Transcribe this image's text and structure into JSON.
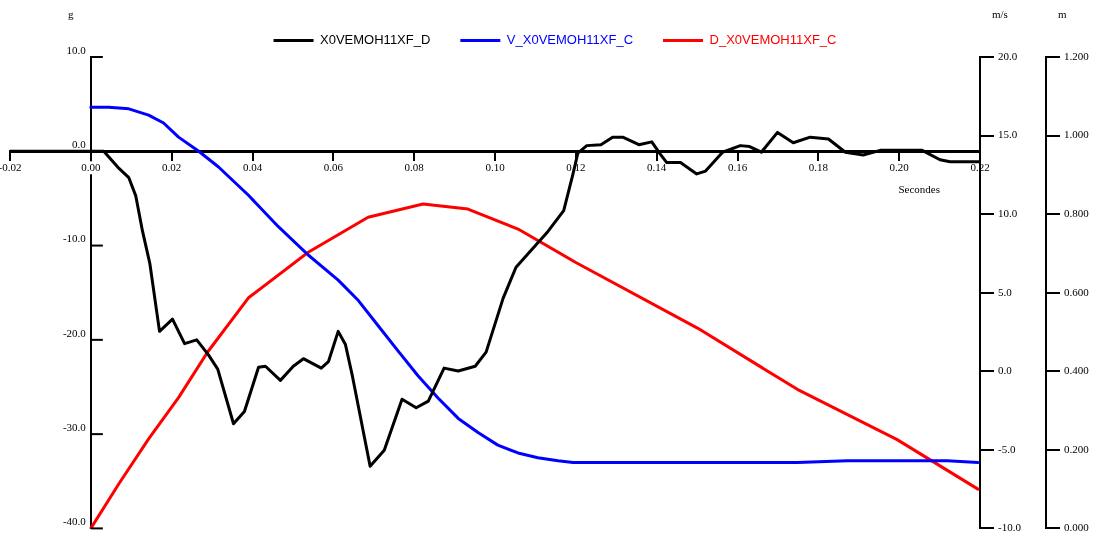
{
  "chart_data": {
    "type": "line",
    "xlabel": "Secondes",
    "ylabel": "g",
    "y2label": "m/s",
    "y3label": "m",
    "legend": "top",
    "grid": false,
    "marker": "none",
    "line_style": "solid",
    "xlim": [
      -0.02,
      0.22
    ],
    "xticks": [
      {
        "value": -0.02,
        "label": "-0.02"
      },
      {
        "value": 0,
        "label": "0.00"
      },
      {
        "value": 0.02,
        "label": "0.02"
      },
      {
        "value": 0.04,
        "label": "0.04"
      },
      {
        "value": 0.06,
        "label": "0.06"
      },
      {
        "value": 0.08,
        "label": "0.08"
      },
      {
        "value": 0.1,
        "label": "0.10"
      },
      {
        "value": 0.12,
        "label": "0.12"
      },
      {
        "value": 0.14,
        "label": "0.14"
      },
      {
        "value": 0.16,
        "label": "0.16"
      },
      {
        "value": 0.18,
        "label": "0.18"
      },
      {
        "value": 0.2,
        "label": "0.20"
      },
      {
        "value": 0.22,
        "label": "0.22"
      }
    ],
    "ylim": [
      -40,
      10
    ],
    "yticks": [
      {
        "value": 10,
        "label": "10.0"
      },
      {
        "value": 0,
        "label": "0.0"
      },
      {
        "value": -10,
        "label": "-10.0"
      },
      {
        "value": -20,
        "label": "-20.0"
      },
      {
        "value": -30,
        "label": "-30.0"
      },
      {
        "value": -40,
        "label": "-40.0"
      }
    ],
    "y2lim": [
      -10,
      20
    ],
    "y2ticks": [
      {
        "value": 20,
        "label": "20.0"
      },
      {
        "value": 15,
        "label": "15.0"
      },
      {
        "value": 10,
        "label": "10.0"
      },
      {
        "value": 5,
        "label": "5.0"
      },
      {
        "value": 0,
        "label": "0.0"
      },
      {
        "value": -5,
        "label": "-5.0"
      },
      {
        "value": -10,
        "label": "-10.0"
      }
    ],
    "y3lim": [
      0,
      1.2
    ],
    "y3ticks": [
      {
        "value": 1.2,
        "label": "1.200"
      },
      {
        "value": 1,
        "label": "1.000"
      },
      {
        "value": 0.8,
        "label": "0.800"
      },
      {
        "value": 0.6,
        "label": "0.600"
      },
      {
        "value": 0.4,
        "label": "0.400"
      },
      {
        "value": 0.2,
        "label": "0.200"
      },
      {
        "value": 0,
        "label": "0.000"
      }
    ],
    "series": [
      {
        "name": "X0VEMOH11XF_D",
        "color": "#000000",
        "axis": "y",
        "x": [
          -0.02,
          0,
          0.0032,
          0.0067,
          0.0094,
          0.0111,
          0.0128,
          0.0146,
          0.017,
          0.0202,
          0.0232,
          0.0262,
          0.0291,
          0.0314,
          0.0353,
          0.038,
          0.0415,
          0.0432,
          0.0469,
          0.0501,
          0.0526,
          0.057,
          0.0588,
          0.0612,
          0.063,
          0.0647,
          0.0691,
          0.0726,
          0.077,
          0.0805,
          0.0835,
          0.0874,
          0.0909,
          0.0951,
          0.0978,
          0.102,
          0.1052,
          0.1131,
          0.117,
          0.1193,
          0.1205,
          0.1227,
          0.1262,
          0.1291,
          0.1316,
          0.1356,
          0.1388,
          0.1407,
          0.1425,
          0.1459,
          0.1499,
          0.1521,
          0.1563,
          0.1607,
          0.163,
          0.1659,
          0.1699,
          0.1738,
          0.178,
          0.1825,
          0.1867,
          0.1911,
          0.1953,
          0.2057,
          0.2101,
          0.2126,
          0.2198
        ],
        "values": [
          0,
          0,
          0,
          -1.7,
          -2.8,
          -4.7,
          -8.5,
          -11.9,
          -19.1,
          -17.8,
          -20.4,
          -20.0,
          -21.6,
          -23.1,
          -28.9,
          -27.6,
          -22.9,
          -22.8,
          -24.3,
          -22.8,
          -22.0,
          -23.0,
          -22.3,
          -19.1,
          -20.5,
          -23.8,
          -33.4,
          -31.7,
          -26.3,
          -27.2,
          -26.5,
          -23.0,
          -23.3,
          -22.8,
          -21.3,
          -15.6,
          -12.3,
          -8.5,
          -6.3,
          -2.4,
          -0.2,
          0.6,
          0.7,
          1.5,
          1.5,
          0.7,
          1.0,
          -0.2,
          -1.2,
          -1.2,
          -2.4,
          -2.1,
          -0.1,
          0.6,
          0.5,
          -0.1,
          2.0,
          0.9,
          1.5,
          1.3,
          -0.1,
          -0.4,
          0.1,
          0.1,
          -0.9,
          -1.1,
          -1.1
        ]
      },
      {
        "name": "V_X0VEMOH11XF_C",
        "color": "#0000ff",
        "axis": "y2",
        "x": [
          0,
          0.0044,
          0.0094,
          0.0143,
          0.018,
          0.0217,
          0.0267,
          0.0316,
          0.039,
          0.0464,
          0.0538,
          0.0612,
          0.0662,
          0.0711,
          0.076,
          0.081,
          0.0859,
          0.0909,
          0.0958,
          0.1007,
          0.1057,
          0.1106,
          0.1156,
          0.1193,
          0.1279,
          0.1501,
          0.1748,
          0.1872,
          0.2119,
          0.2195
        ],
        "values": [
          16.8,
          16.8,
          16.7,
          16.3,
          15.8,
          14.9,
          14.0,
          13.0,
          11.2,
          9.2,
          7.4,
          5.8,
          4.5,
          2.9,
          1.3,
          -0.3,
          -1.7,
          -3.0,
          -3.9,
          -4.7,
          -5.2,
          -5.5,
          -5.7,
          -5.8,
          -5.8,
          -5.8,
          -5.8,
          -5.7,
          -5.7,
          -5.8
        ]
      },
      {
        "name": "D_X0VEMOH11XF_C",
        "color": "#ff0000",
        "axis": "y3",
        "x": [
          0,
          0.0069,
          0.0143,
          0.0217,
          0.0289,
          0.039,
          0.0538,
          0.0686,
          0.0822,
          0.0933,
          0.1057,
          0.12,
          0.1501,
          0.1748,
          0.1995,
          0.2195
        ],
        "values": [
          0.0,
          0.113,
          0.228,
          0.333,
          0.449,
          0.587,
          0.703,
          0.792,
          0.826,
          0.813,
          0.762,
          0.677,
          0.51,
          0.354,
          0.226,
          0.1
        ]
      }
    ]
  }
}
